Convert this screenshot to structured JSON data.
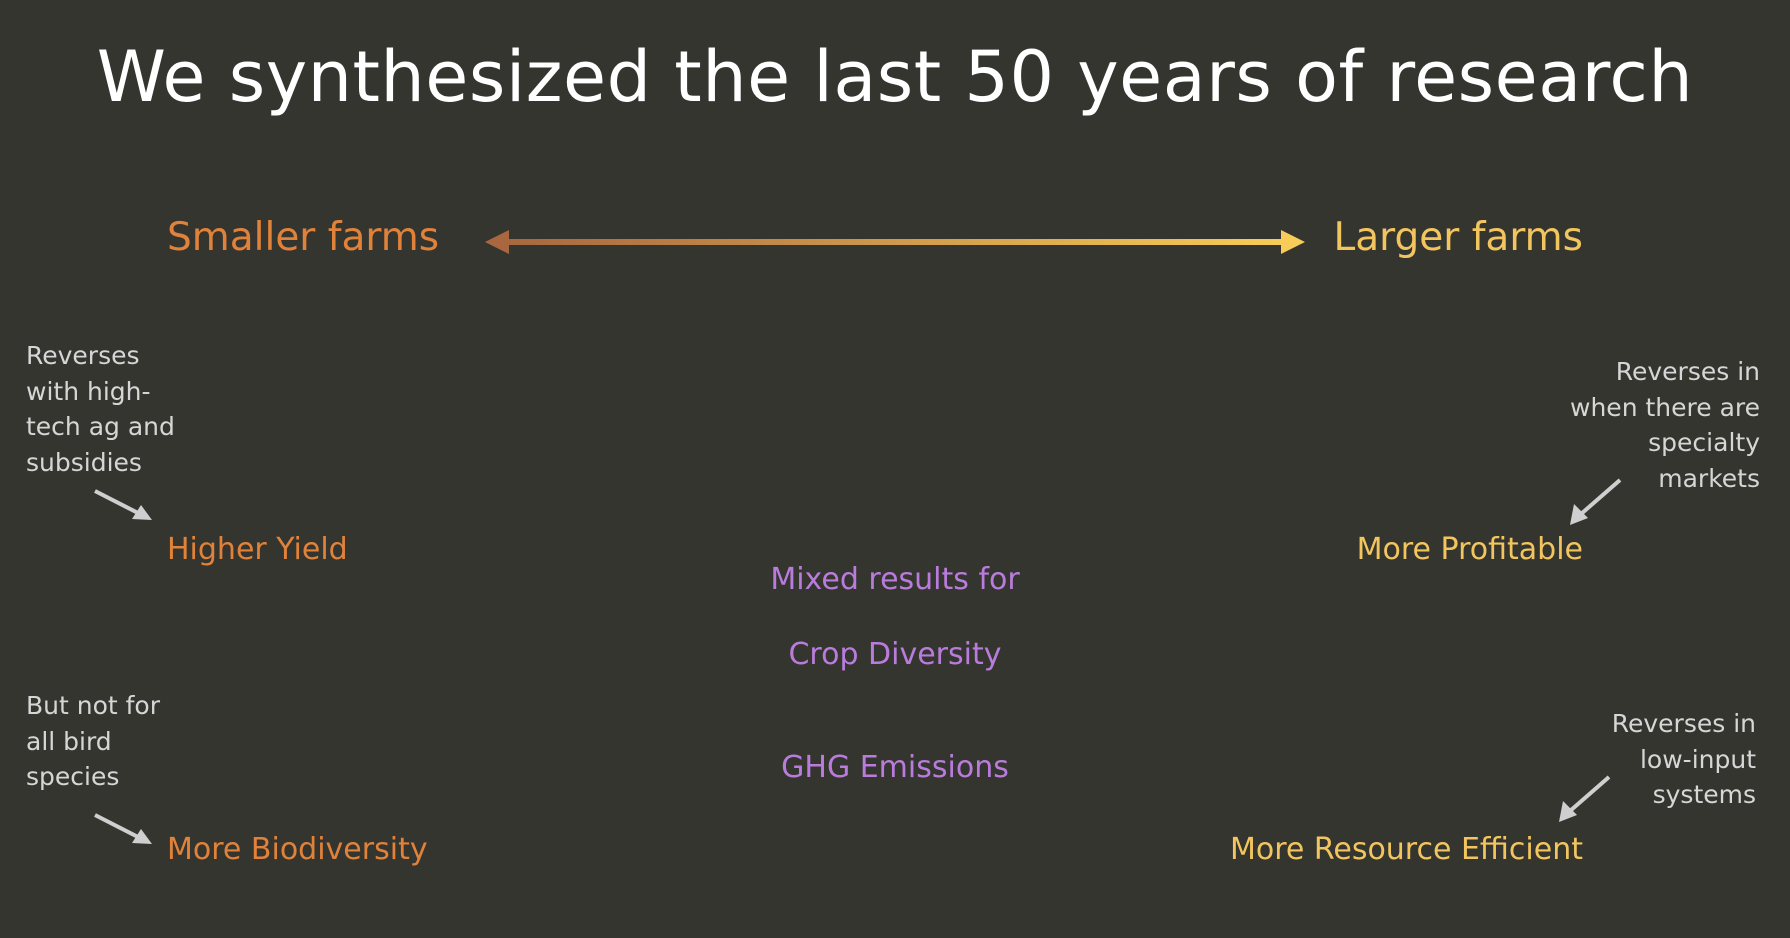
{
  "title": "We synthesized the last 50 years of research",
  "scale": {
    "left_label": "Smaller farms",
    "right_label": "Larger farms",
    "gradient_start": "#a8673f",
    "gradient_end": "#f8cc58"
  },
  "left_outcomes": [
    {
      "label": "Higher Yield",
      "note": "Reverses with high-tech ag and subsidies"
    },
    {
      "label": "More Biodiversity",
      "note": "But not for all bird species"
    }
  ],
  "right_outcomes": [
    {
      "label": "More Profitable",
      "note": "Reverses in when there are specialty markets"
    },
    {
      "label": "More Resource Efficient",
      "note": "Reverses in low-input systems"
    }
  ],
  "mixed": {
    "heading": "Mixed results for",
    "items": [
      "Crop Diversity",
      "GHG Emissions"
    ]
  },
  "colors": {
    "background": "#353530",
    "small_farms": "#e0823a",
    "large_farms": "#f2c55e",
    "mixed": "#b97cdc",
    "notes": "#d6d6d6"
  }
}
